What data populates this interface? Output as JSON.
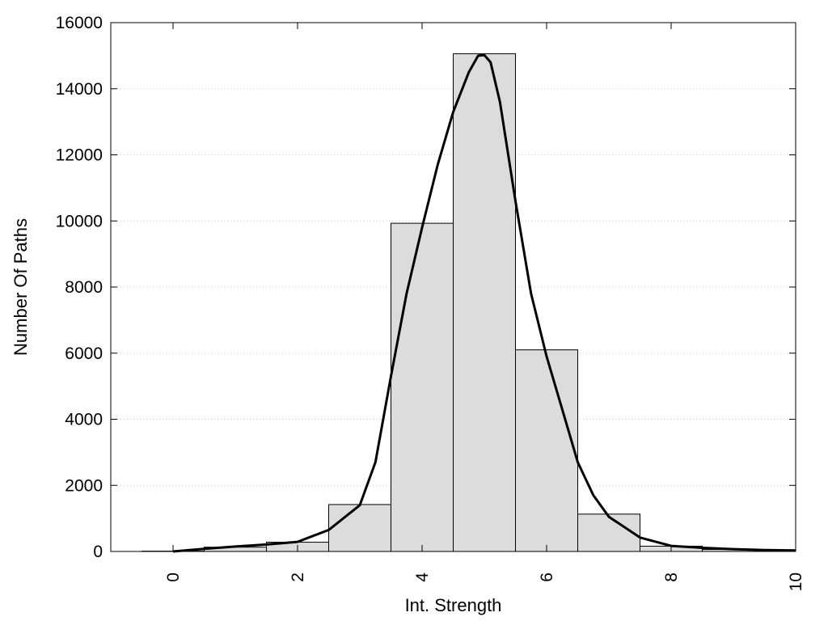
{
  "chart_data": {
    "type": "bar",
    "title": "",
    "xlabel": "Int. Strength",
    "ylabel": "Number Of Paths",
    "xlim": [
      -1,
      10
    ],
    "ylim": [
      0,
      16000
    ],
    "x_ticks": [
      "0",
      "2",
      "4",
      "6",
      "8",
      "10"
    ],
    "y_ticks": [
      "0",
      "2000",
      "4000",
      "6000",
      "8000",
      "10000",
      "12000",
      "14000",
      "16000"
    ],
    "grid": "horizontal-dotted",
    "legend": "none",
    "bar_color": "#dcdcdc",
    "line_color": "#000000",
    "bins": [
      {
        "x": 0,
        "value": 10
      },
      {
        "x": 1,
        "value": 130
      },
      {
        "x": 2,
        "value": 280
      },
      {
        "x": 3,
        "value": 1420
      },
      {
        "x": 4,
        "value": 9930
      },
      {
        "x": 5,
        "value": 15060
      },
      {
        "x": 6,
        "value": 6100
      },
      {
        "x": 7,
        "value": 1130
      },
      {
        "x": 8,
        "value": 160
      },
      {
        "x": 9,
        "value": 60
      },
      {
        "x": 10,
        "value": 20
      }
    ],
    "series": [
      {
        "type": "line",
        "x": [
          0,
          0.5,
          1,
          1.5,
          2,
          2.5,
          3,
          3.25,
          3.5,
          3.75,
          4,
          4.25,
          4.5,
          4.75,
          4.9,
          5,
          5.1,
          5.25,
          5.5,
          5.75,
          6,
          6.25,
          6.5,
          6.75,
          7,
          7.5,
          8,
          8.5,
          9,
          9.5,
          10
        ],
        "y": [
          0,
          80,
          150,
          210,
          290,
          650,
          1400,
          2700,
          5300,
          7800,
          9800,
          11700,
          13300,
          14500,
          15000,
          15020,
          14800,
          13600,
          10600,
          7800,
          5900,
          4300,
          2700,
          1700,
          1050,
          420,
          170,
          110,
          70,
          45,
          30
        ]
      }
    ]
  }
}
